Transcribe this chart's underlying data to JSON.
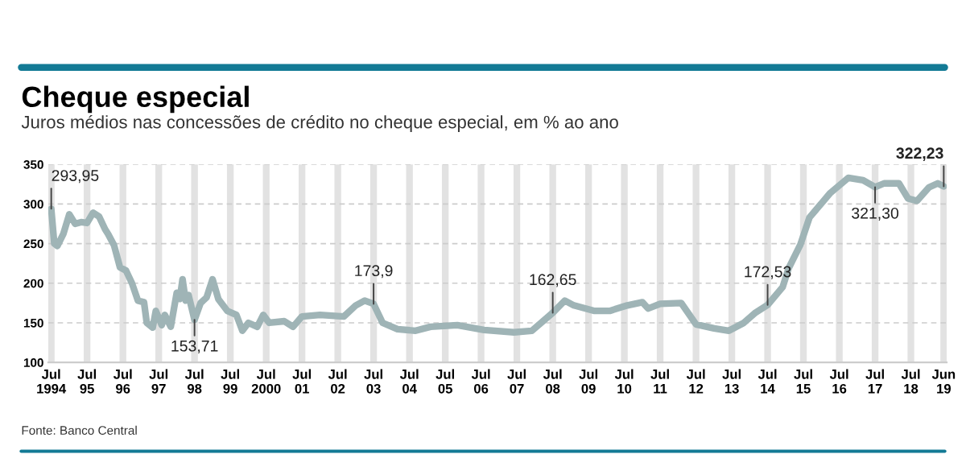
{
  "chart_data": {
    "type": "line",
    "title": "Cheque especial",
    "subtitle": "Juros médios nas concessões de crédito no cheque especial, em % ao ano",
    "x": [
      "1994-07",
      "1994-08",
      "1994-09",
      "1994-11",
      "1995-01",
      "1995-03",
      "1995-05",
      "1995-07",
      "1995-09",
      "1995-11",
      "1996-01",
      "1996-02",
      "1996-04",
      "1996-06",
      "1996-08",
      "1996-10",
      "1996-12",
      "1997-02",
      "1997-03",
      "1997-05",
      "1997-06",
      "1997-08",
      "1997-09",
      "1997-11",
      "1998-01",
      "1998-02",
      "1998-03",
      "1998-04",
      "1998-05",
      "1998-07",
      "1998-09",
      "1998-11",
      "1999-01",
      "1999-03",
      "1999-06",
      "1999-09",
      "1999-11",
      "2000-01",
      "2000-04",
      "2000-06",
      "2000-08",
      "2001-01",
      "2001-04",
      "2001-07",
      "2002-01",
      "2002-09",
      "2003-01",
      "2003-04",
      "2003-07",
      "2003-10",
      "2004-03",
      "2004-09",
      "2005-02",
      "2005-11",
      "2006-08",
      "2007-06",
      "2007-12",
      "2008-07",
      "2008-11",
      "2009-02",
      "2009-09",
      "2010-02",
      "2010-08",
      "2011-01",
      "2011-03",
      "2011-07",
      "2012-02",
      "2012-07",
      "2013-01",
      "2013-06",
      "2013-11",
      "2014-03",
      "2014-07",
      "2014-12",
      "2015-02",
      "2015-06",
      "2015-09",
      "2016-04",
      "2016-10",
      "2017-03",
      "2017-07",
      "2017-10",
      "2018-03",
      "2018-06",
      "2018-09",
      "2019-01",
      "2019-04",
      "2019-06"
    ],
    "series": [
      {
        "color": "#9fb4b6",
        "values": [
          293.95,
          250,
          247,
          262,
          287,
          275,
          277,
          276,
          289,
          284,
          268,
          262,
          248,
          220,
          216,
          200,
          178,
          176,
          150,
          144,
          165,
          147,
          160,
          145,
          188,
          180,
          205,
          178,
          185,
          153.71,
          175,
          182,
          205,
          180,
          165,
          160,
          140,
          150,
          145,
          160,
          150,
          152,
          145,
          158,
          160,
          158,
          172,
          178,
          173.9,
          150,
          142,
          140,
          145,
          147,
          141,
          138,
          140,
          162.65,
          178,
          172,
          165,
          165,
          172,
          176,
          168,
          174,
          175,
          148,
          143,
          140,
          150,
          163,
          172.53,
          195,
          219,
          249,
          283,
          314,
          333,
          330,
          321.3,
          326,
          326,
          307,
          304,
          321,
          326,
          322.23
        ]
      }
    ],
    "ylim": [
      100,
      350
    ],
    "yticks": [
      100,
      150,
      200,
      250,
      300,
      350
    ],
    "xlim": [
      "1994-06",
      "2019-07"
    ],
    "xticks": [
      {
        "value": "1994-07",
        "label": "Jul\n1994"
      },
      {
        "value": "1995-07",
        "label": "Jul\n95"
      },
      {
        "value": "1996-07",
        "label": "Jul\n96"
      },
      {
        "value": "1997-07",
        "label": "Jul\n97"
      },
      {
        "value": "1998-07",
        "label": "Jul\n98"
      },
      {
        "value": "1999-07",
        "label": "Jul\n99"
      },
      {
        "value": "2000-07",
        "label": "Jul\n2000"
      },
      {
        "value": "2001-07",
        "label": "Jul\n01"
      },
      {
        "value": "2002-07",
        "label": "Jul\n02"
      },
      {
        "value": "2003-07",
        "label": "Jul\n03"
      },
      {
        "value": "2004-07",
        "label": "Jul\n04"
      },
      {
        "value": "2005-07",
        "label": "Jul\n05"
      },
      {
        "value": "2006-07",
        "label": "Jul\n06"
      },
      {
        "value": "2007-07",
        "label": "Jul\n07"
      },
      {
        "value": "2008-07",
        "label": "Jul\n08"
      },
      {
        "value": "2009-07",
        "label": "Jul\n09"
      },
      {
        "value": "2010-07",
        "label": "Jul\n10"
      },
      {
        "value": "2011-07",
        "label": "Jul\n11"
      },
      {
        "value": "2012-07",
        "label": "Jul\n12"
      },
      {
        "value": "2013-07",
        "label": "Jul\n13"
      },
      {
        "value": "2014-07",
        "label": "Jul\n14"
      },
      {
        "value": "2015-07",
        "label": "Jul\n15"
      },
      {
        "value": "2016-07",
        "label": "Jul\n16"
      },
      {
        "value": "2017-07",
        "label": "Jul\n17"
      },
      {
        "value": "2018-07",
        "label": "Jul\n18"
      },
      {
        "value": "2019-06",
        "label": "Jun\n19"
      }
    ],
    "grid": true,
    "marker": "none",
    "line_style": "solid",
    "annotations": [
      {
        "text": "293,95",
        "x": "1994-07",
        "y": 293.95
      },
      {
        "text": "153,71",
        "x": "1998-07",
        "y": 153.71
      },
      {
        "text": "173,9",
        "x": "2003-07",
        "y": 173.9
      },
      {
        "text": "162,65",
        "x": "2008-07",
        "y": 162.65
      },
      {
        "text": "172,53",
        "x": "2014-07",
        "y": 172.53
      },
      {
        "text": "321,30",
        "x": "2017-07",
        "y": 321.3
      },
      {
        "text": "322,23",
        "x": "2019-06",
        "y": 322.23
      },
      "Fonte: Banco Central"
    ]
  }
}
